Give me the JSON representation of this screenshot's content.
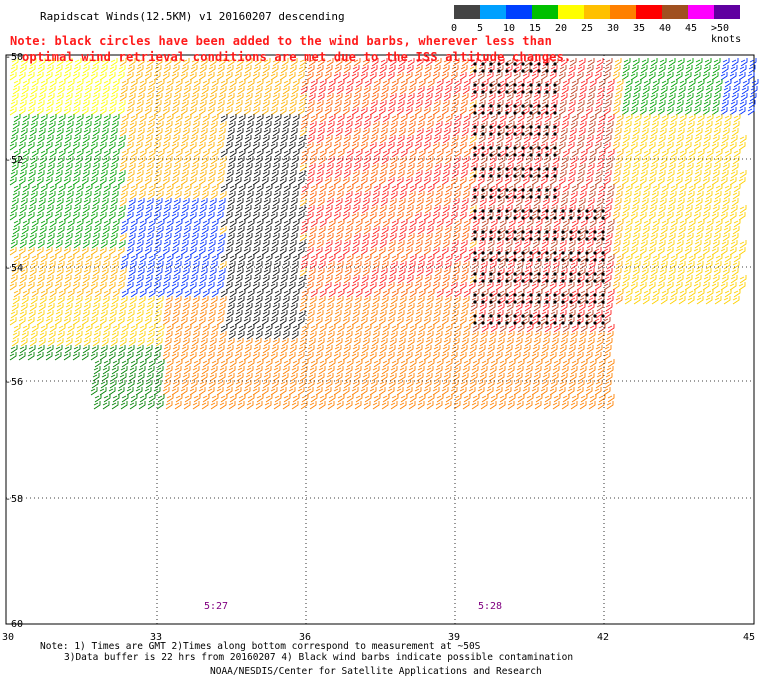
{
  "title": "Rapidscat Winds(12.5KM) v1 20160207 descending",
  "note_line1": "Note: black circles have been added to the wind barbs, wherever less than",
  "note_line2": "optimal wind retrieval conditions are met due to the ISS altitude changes.",
  "legend": {
    "labels": [
      "0",
      "5",
      "10",
      "15",
      "20",
      "25",
      "30",
      "35",
      "40",
      "45",
      ">50 knots"
    ],
    "colors": [
      "#444444",
      "#00a0ff",
      "#0040ff",
      "#00c000",
      "#ffff00",
      "#ffc000",
      "#ff8000",
      "#ff0000",
      "#a05020",
      "#ff00ff",
      "#6000a0"
    ]
  },
  "map": {
    "lat_labels": [
      "-50",
      "-52",
      "-54",
      "-56",
      "-58",
      "-60"
    ],
    "lon_labels": [
      "30",
      "33",
      "36",
      "39",
      "42",
      "45"
    ],
    "time_labels": [
      "5:27",
      "5:28"
    ]
  },
  "footer": {
    "line1": "Note: 1) Times are GMT 2)Times along bottom correspond to measurement at ~50S",
    "line2": "3)Data buffer is 22 hrs from 20160207 4) Black wind barbs indicate possible contamination",
    "line3": "NOAA/NESDIS/Center for Satellite Applications and Research"
  }
}
